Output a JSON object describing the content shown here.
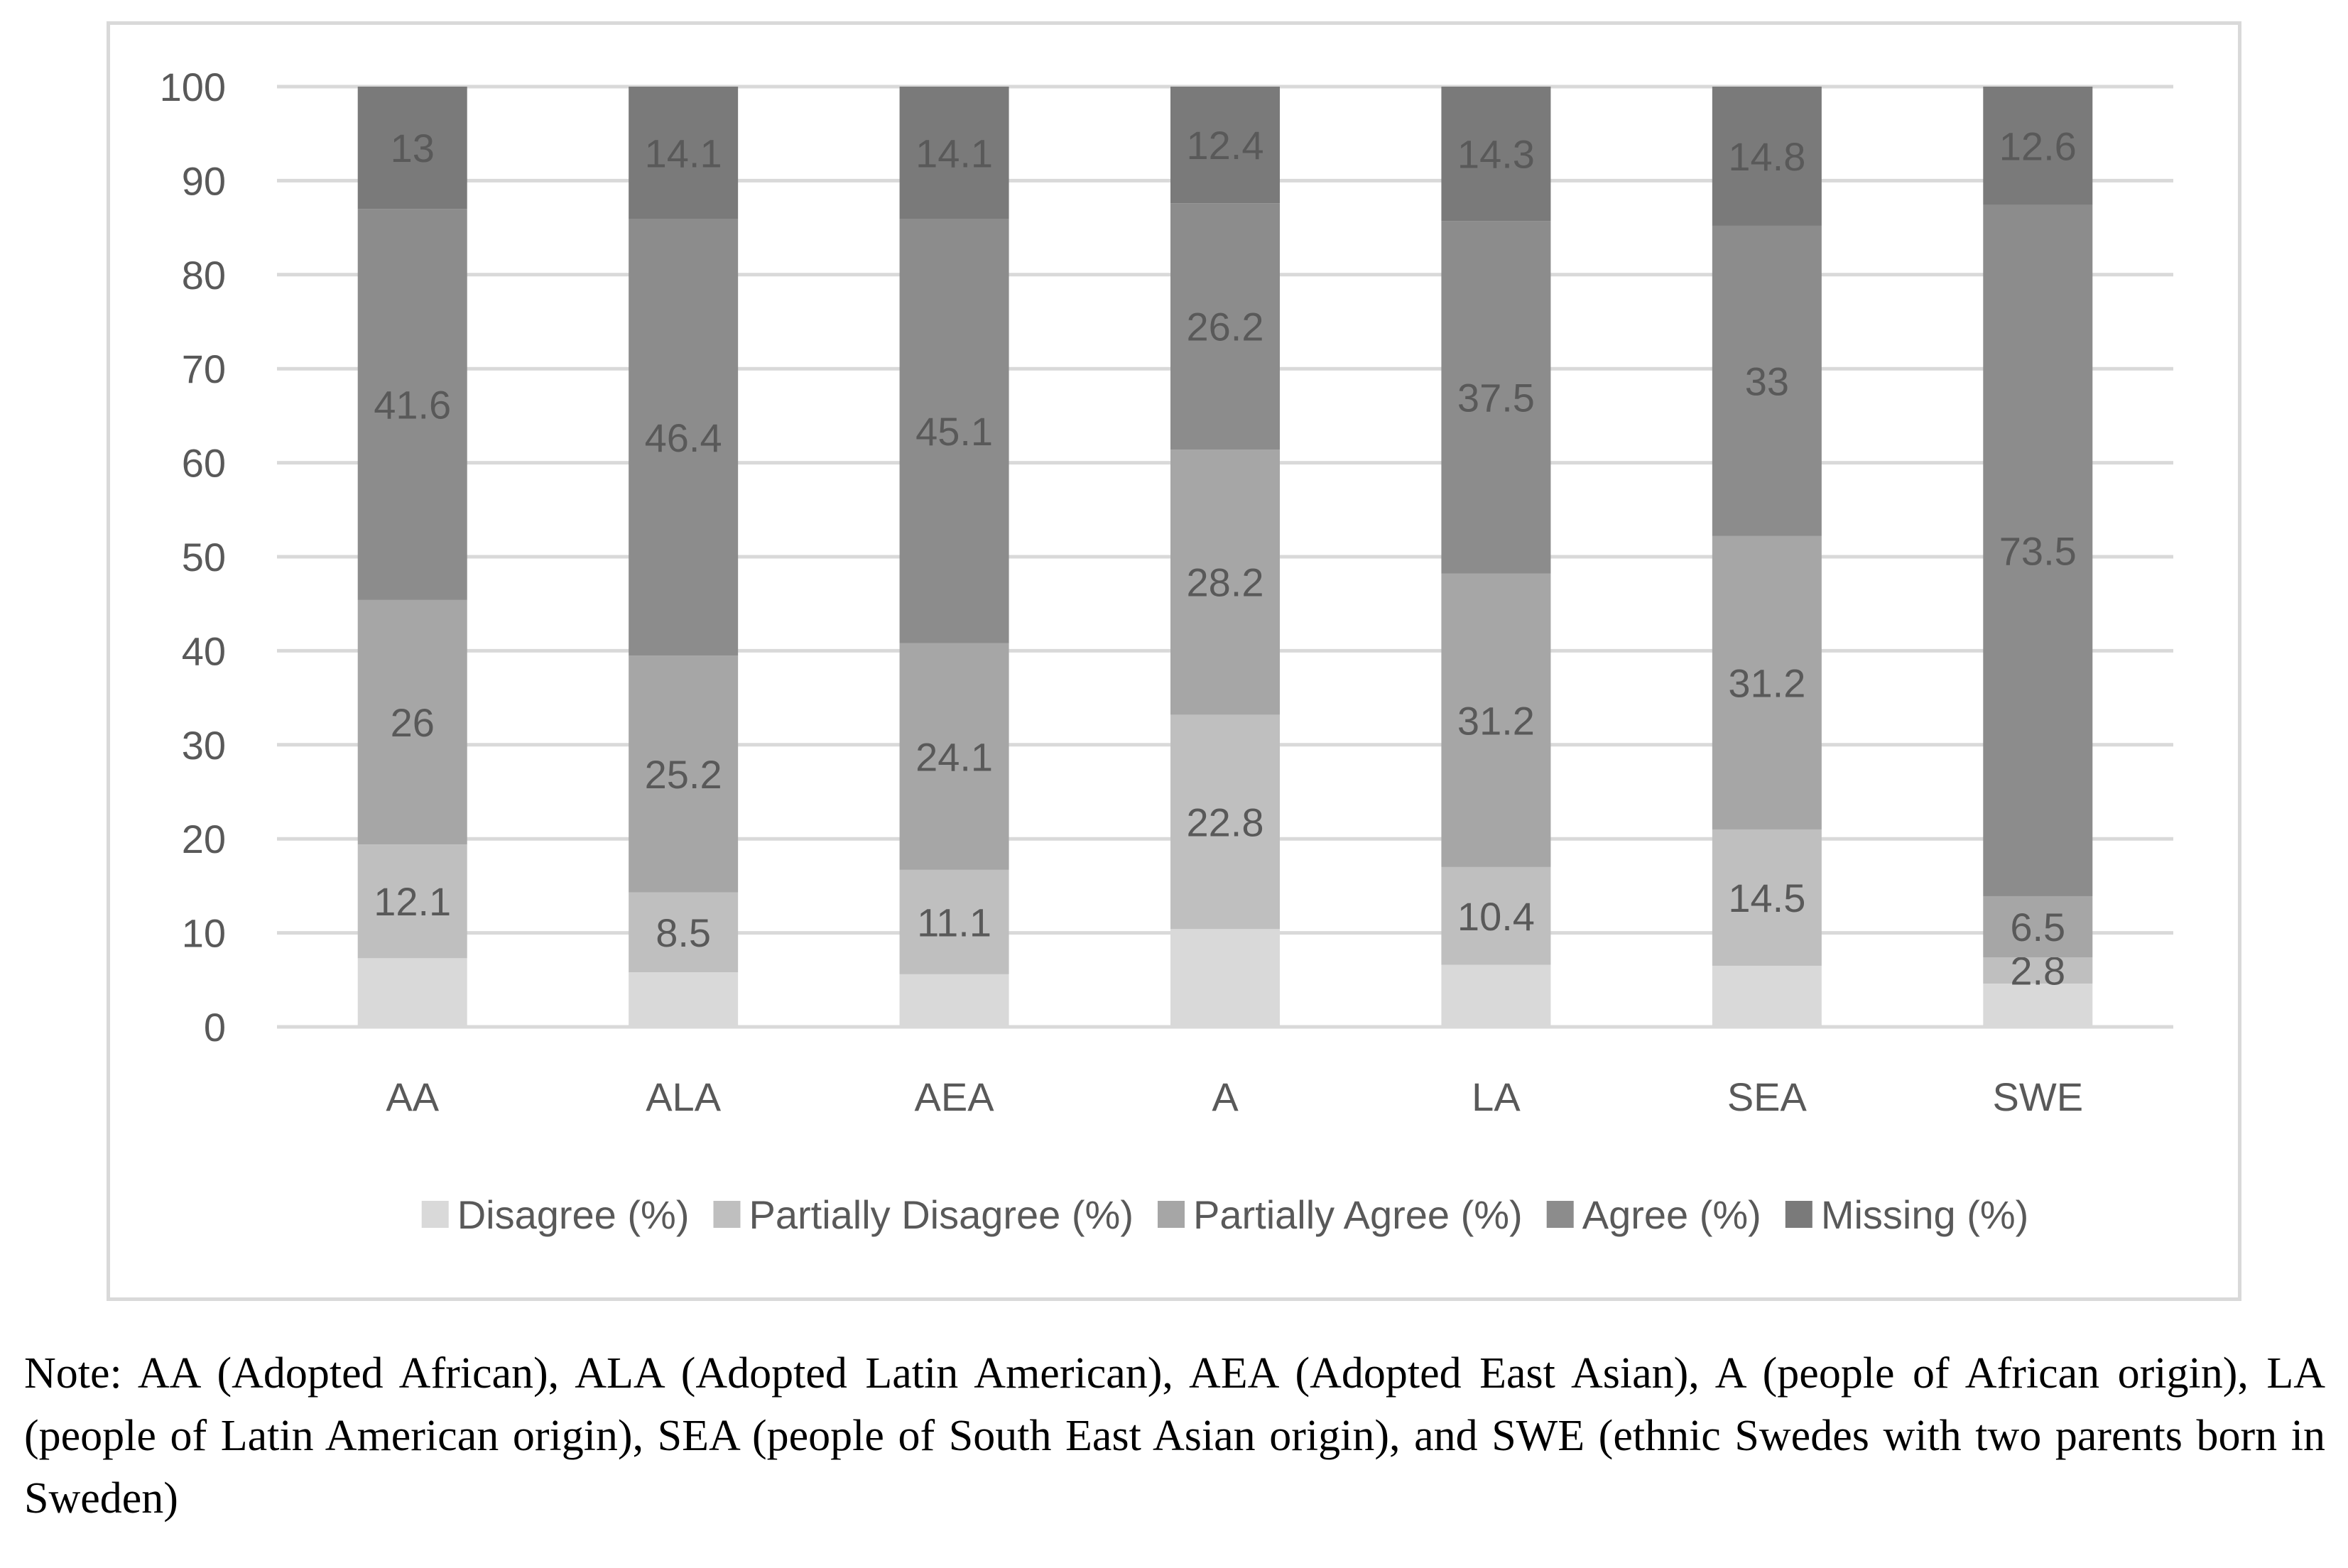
{
  "chart_data": {
    "type": "bar",
    "stacked": true,
    "title": "",
    "xlabel": "",
    "ylabel": "",
    "ylim": [
      0,
      100
    ],
    "yticks": [
      0,
      10,
      20,
      30,
      40,
      50,
      60,
      70,
      80,
      90,
      100
    ],
    "grid": true,
    "legend_position": "bottom",
    "categories": [
      "AA",
      "ALA",
      "AEA",
      "A",
      "LA",
      "SEA",
      "SWE"
    ],
    "series": [
      {
        "name": "Disagree (%)",
        "color": "#d9d9d9",
        "values": [
          7.3,
          5.8,
          5.6,
          10.4,
          6.6,
          6.5,
          4.6
        ],
        "labels": [
          "",
          "",
          "",
          "",
          "",
          "",
          ""
        ]
      },
      {
        "name": "Partially Disagree (%)",
        "color": "#bfbfbf",
        "values": [
          12.1,
          8.5,
          11.1,
          22.8,
          10.4,
          14.5,
          2.8
        ],
        "labels": [
          "12.1",
          "8.5",
          "11.1",
          "22.8",
          "10.4",
          "14.5",
          "2.8"
        ]
      },
      {
        "name": "Partially Agree (%)",
        "color": "#a6a6a6",
        "values": [
          26,
          25.2,
          24.1,
          28.2,
          31.2,
          31.2,
          6.5
        ],
        "labels": [
          "26",
          "25.2",
          "24.1",
          "28.2",
          "31.2",
          "31.2",
          "6.5"
        ]
      },
      {
        "name": "Agree (%)",
        "color": "#8c8c8c",
        "values": [
          41.6,
          46.4,
          45.1,
          26.2,
          37.5,
          33,
          73.5
        ],
        "labels": [
          "41.6",
          "46.4",
          "45.1",
          "26.2",
          "37.5",
          "33",
          "73.5"
        ]
      },
      {
        "name": "Missing (%)",
        "color": "#7a7a7a",
        "values": [
          13,
          14.1,
          14.1,
          12.4,
          14.3,
          14.8,
          12.6
        ],
        "labels": [
          "13",
          "14.1",
          "14.1",
          "12.4",
          "14.3",
          "14.8",
          "12.6"
        ]
      }
    ],
    "label_color": "#595959",
    "axis_text_color": "#595959",
    "grid_color": "#d9d9d9"
  },
  "note": {
    "text": "Note: AA (Adopted African), ALA (Adopted Latin American), AEA (Adopted East Asian), A (people of African origin), LA (people of Latin American origin), SEA (people of South East Asian origin), and SWE (ethnic Swedes with two parents born in Sweden)"
  }
}
